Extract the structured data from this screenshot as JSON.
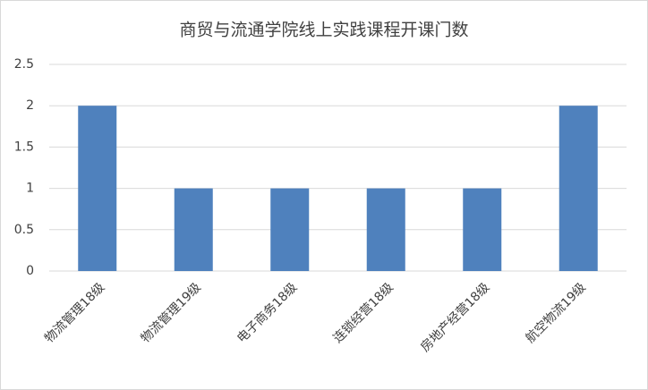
{
  "chart_data": {
    "type": "bar",
    "title": "商贸与流通学院线上实践课程开课门数",
    "categories": [
      "物流管理18级",
      "物流管理19级",
      "电子商务18级",
      "连锁经营18级",
      "房地产经营18级",
      "航空物流19级"
    ],
    "values": [
      2,
      1,
      1,
      1,
      1,
      2
    ],
    "color": "#4f81bd",
    "ylim": [
      0,
      2.5
    ],
    "yticks": [
      0,
      0.5,
      1,
      1.5,
      2,
      2.5
    ],
    "grid": true
  }
}
